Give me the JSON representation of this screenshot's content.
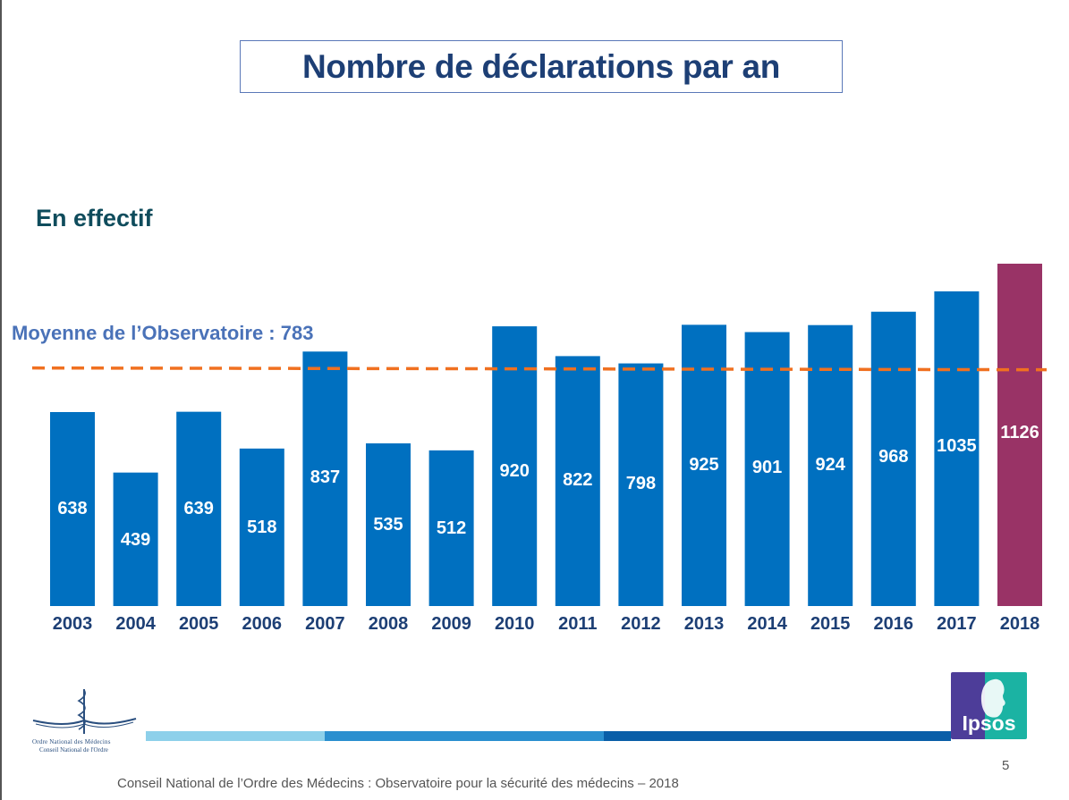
{
  "title": "Nombre de déclarations par an",
  "subtitle": "En effectif",
  "average_label": "Moyenne de l’Observatoire : 783",
  "footer": "Conseil National de l’Ordre des Médecins : Observatoire pour la sécurité des médecins – 2018",
  "page_number": "5",
  "logo_left": {
    "line1": "Ordre National des Médecins",
    "line2": "Conseil National de l'Ordre"
  },
  "logo_right": "Ipsos",
  "colors": {
    "bar": "#0070c0",
    "highlight": "#993366",
    "average_line": "#f07020",
    "title": "#1d3f75"
  },
  "chart_data": {
    "type": "bar",
    "title": "Nombre de déclarations par an",
    "categories": [
      "2003",
      "2004",
      "2005",
      "2006",
      "2007",
      "2008",
      "2009",
      "2010",
      "2011",
      "2012",
      "2013",
      "2014",
      "2015",
      "2016",
      "2017",
      "2018"
    ],
    "values": [
      638,
      439,
      639,
      518,
      837,
      535,
      512,
      920,
      822,
      798,
      925,
      901,
      924,
      968,
      1035,
      1126
    ],
    "average": 783,
    "highlight_category": "2018",
    "ylim": [
      0,
      1126
    ],
    "grid": false
  }
}
